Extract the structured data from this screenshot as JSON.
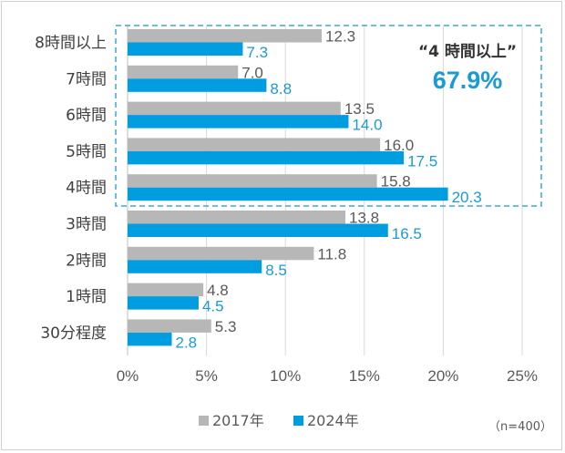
{
  "chart_data": {
    "type": "bar",
    "orientation": "horizontal",
    "categories": [
      "8時間以上",
      "7時間",
      "6時間",
      "5時間",
      "4時間",
      "3時間",
      "2時間",
      "1時間",
      "30分程度"
    ],
    "series": [
      {
        "name": "2017年",
        "color": "#b7b7b7",
        "values": [
          12.3,
          7.0,
          13.5,
          16.0,
          15.8,
          13.8,
          11.8,
          4.8,
          5.3
        ]
      },
      {
        "name": "2024年",
        "color": "#009de0",
        "values": [
          7.3,
          8.8,
          14.0,
          17.5,
          20.3,
          16.5,
          8.5,
          4.5,
          2.8
        ]
      }
    ],
    "value_labels": {
      "2017年": [
        "12.3",
        "7.0",
        "13.5",
        "16.0",
        "15.8",
        "13.8",
        "11.8",
        "4.8",
        "5.3"
      ],
      "2024年": [
        "7.3",
        "8.8",
        "14.0",
        "17.5",
        "20.3",
        "16.5",
        "8.5",
        "4.5",
        "2.8"
      ]
    },
    "xlim": [
      0,
      25
    ],
    "x_ticks": [
      "0%",
      "5%",
      "10%",
      "15%",
      "20%",
      "25%"
    ],
    "grid": "vertical",
    "legend_position": "bottom",
    "annotation": {
      "title": "“4 時間以上”",
      "value": "67.9%",
      "highlight_categories": [
        "8時間以上",
        "7時間",
        "6時間",
        "5時間",
        "4時間"
      ],
      "box_style": "dashed"
    },
    "note": "（n=400）"
  }
}
